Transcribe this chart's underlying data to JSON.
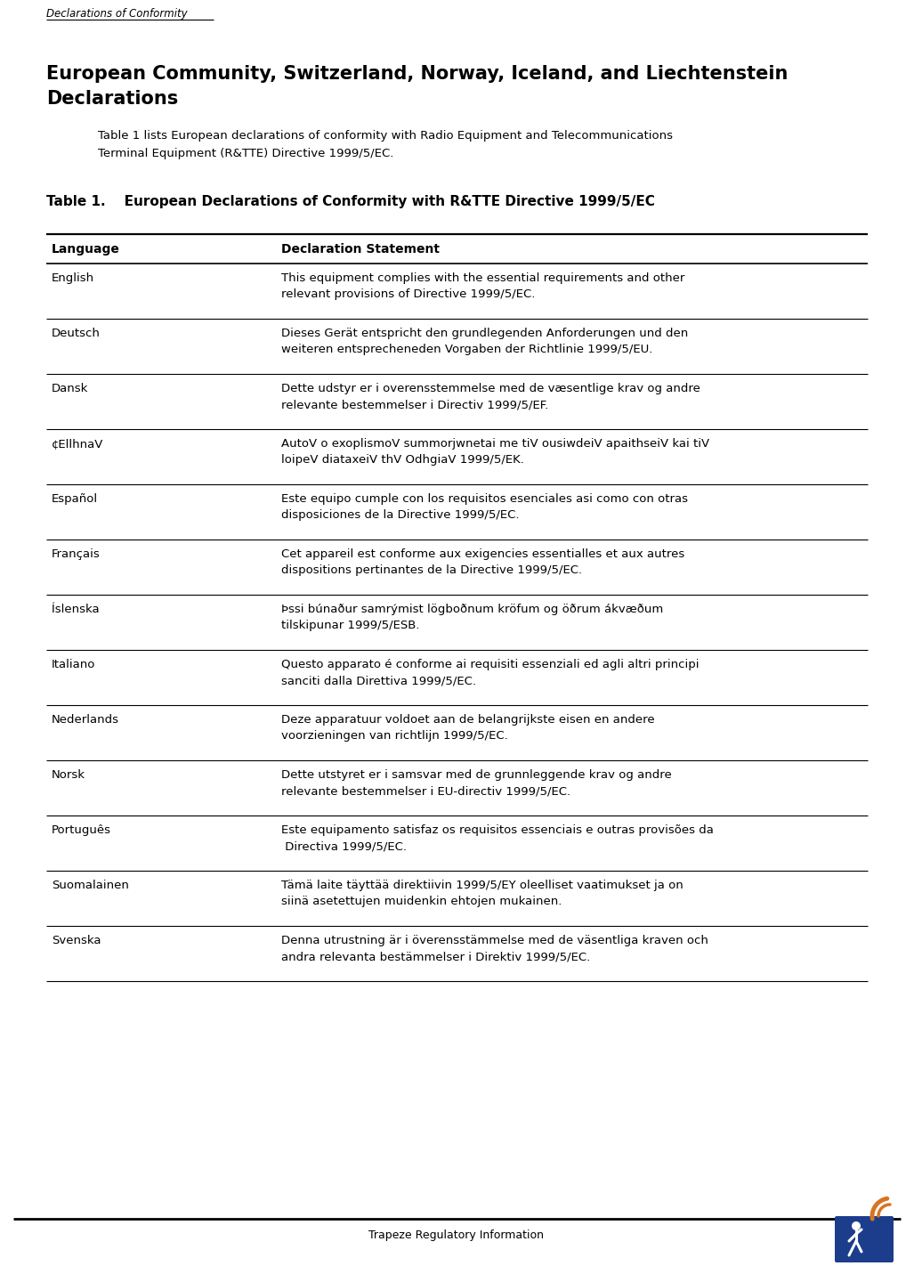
{
  "header_text": "Declarations of Conformity",
  "footer_text": "Trapeze Regulatory Information",
  "section_title_line1": "European Community, Switzerland, Norway, Iceland, and Liechtenstein",
  "section_title_line2": "Declarations",
  "intro_line1": "Table 1 lists European declarations of conformity with Radio Equipment and Telecommunications",
  "intro_line2": "Terminal Equipment (R&TTE) Directive 1999/5/EC.",
  "table_title": "Table 1.    European Declarations of Conformity with R&TTE Directive 1999/5/EC",
  "col1_header": "Language",
  "col2_header": "Declaration Statement",
  "rows": [
    [
      "English",
      "This equipment complies with the essential requirements and other\nrelevant provisions of Directive 1999/5/EC."
    ],
    [
      "Deutsch",
      "Dieses Gerät entspricht den grundlegenden Anforderungen und den\nweiteren entsprecheneden Vorgaben der Richtlinie 1999/5/EU."
    ],
    [
      "Dansk",
      "Dette udstyr er i overensstemmelse med de væsentlige krav og andre\nrelevante bestemmelser i Directiv 1999/5/EF."
    ],
    [
      "¢EllhnaV",
      "AutoV o exoplismoV summorjwnetai me tiV ousiwdeiV apaithseiV kai tiV\nloipeV diataxeiV thV OdhgiaV 1999/5/EK."
    ],
    [
      "Español",
      "Este equipo cumple con los requisitos esenciales asi como con otras\ndisposiciones de la Directive 1999/5/EC."
    ],
    [
      "Français",
      "Cet appareil est conforme aux exigencies essentialles et aux autres\ndispositions pertinantes de la Directive 1999/5/EC."
    ],
    [
      "Íslenska",
      "Þssi búnaður samrýmist lögboðnum kröfum og öðrum ákvæðum\ntilskipunar 1999/5/ESB."
    ],
    [
      "Italiano",
      "Questo apparato é conforme ai requisiti essenziali ed agli altri principi\nsanciti dalla Direttiva 1999/5/EC."
    ],
    [
      "Nederlands",
      "Deze apparatuur voldoet aan de belangrijkste eisen en andere\nvoorzieningen van richtlijn 1999/5/EC."
    ],
    [
      "Norsk",
      "Dette utstyret er i samsvar med de grunnleggende krav og andre\nrelevante bestemmelser i EU-directiv 1999/5/EC."
    ],
    [
      "Português",
      "Este equipamento satisfaz os requisitos essenciais e outras provisões da\n Directiva 1999/5/EC."
    ],
    [
      "Suomalainen",
      "Tämä laite täyttää direktiivin 1999/5/EY oleelliset vaatimukset ja on\nsiinä asetettujen muidenkin ehtojen mukainen."
    ],
    [
      "Svenska",
      "Denna utrustning är i överensstämmelse med de väsentliga kraven och\nandra relevanta bestämmelser i Direktiv 1999/5/EC."
    ]
  ],
  "bg_color": "#ffffff",
  "text_color": "#000000",
  "logo_blue": "#1c3d8c",
  "logo_orange": "#d97320",
  "header_font_size": 8.5,
  "section_font_size": 15,
  "intro_font_size": 9.5,
  "table_title_font_size": 11,
  "col_header_font_size": 10,
  "row_font_size": 9.5,
  "footer_font_size": 9
}
